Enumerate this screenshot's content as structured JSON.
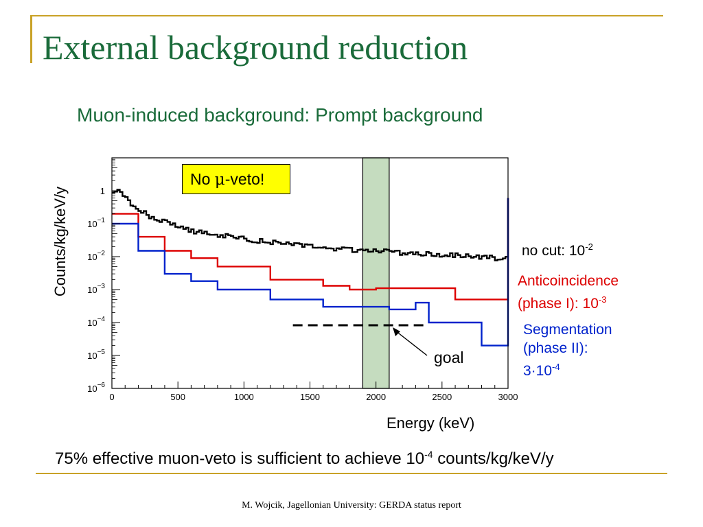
{
  "slide": {
    "title": "External background reduction",
    "subtitle": "Muon-induced background: Prompt background",
    "no_veto_box": {
      "prefix": "No ",
      "symbol": "μ",
      "suffix": "-veto!"
    },
    "annotations": {
      "no_cut": {
        "text": "no cut: 10",
        "exp": "-2"
      },
      "anticoincidence": {
        "line1": "Anticoincidence",
        "line2": "(phase I): 10",
        "exp": "-3"
      },
      "segmentation": {
        "line1": "Segmentation",
        "line2": "(phase II):",
        "line3": "3·10",
        "exp": "-4"
      },
      "goal": "goal"
    },
    "conclusion": {
      "part1": "75% effective muon-veto is sufficient to achieve 10",
      "exp": "-4",
      "part2": " counts/kg/keV/y"
    },
    "footer": "M. Wojcik, Jagellonian University: GERDA status report",
    "colors": {
      "title": "#1a6b3a",
      "frame": "#c9a227",
      "red": "#dd0000",
      "blue": "#0022cc",
      "band": "#c5dcbf",
      "highlight": "#ffff00"
    }
  },
  "chart_data": {
    "type": "line",
    "xlabel": "Energy (keV)",
    "ylabel": "Counts/kg/keV/y",
    "xlim": [
      0,
      3000
    ],
    "ylim": [
      1e-06,
      10
    ],
    "yscale": "log",
    "x_ticks": [
      "0",
      "500",
      "1000",
      "1500",
      "2000",
      "2500",
      "3000"
    ],
    "y_ticks": [
      {
        "base": "1",
        "exp": ""
      },
      {
        "base": "10",
        "exp": "−1"
      },
      {
        "base": "10",
        "exp": "−2"
      },
      {
        "base": "10",
        "exp": "−3"
      },
      {
        "base": "10",
        "exp": "−4"
      },
      {
        "base": "10",
        "exp": "−5"
      },
      {
        "base": "10",
        "exp": "−6"
      }
    ],
    "roi_band": [
      1900,
      2100
    ],
    "goal_level": {
      "y": 0.0001,
      "x_start": 1350,
      "x_end": 2400
    },
    "series": [
      {
        "name": "no cut",
        "color": "#000000",
        "style": "noisy",
        "x": [
          0,
          50,
          100,
          150,
          200,
          250,
          300,
          400,
          500,
          600,
          700,
          800,
          900,
          1000,
          1100,
          1200,
          1300,
          1400,
          1500,
          1600,
          1700,
          1800,
          1900,
          2000,
          2100,
          2200,
          2300,
          2400,
          2500,
          2600,
          2700,
          2800,
          2900,
          3000
        ],
        "y": [
          1,
          0.9,
          0.6,
          0.35,
          0.25,
          0.2,
          0.15,
          0.11,
          0.08,
          0.06,
          0.05,
          0.045,
          0.04,
          0.035,
          0.03,
          0.027,
          0.024,
          0.022,
          0.02,
          0.018,
          0.017,
          0.016,
          0.015,
          0.015,
          0.014,
          0.013,
          0.012,
          0.012,
          0.011,
          0.011,
          0.01,
          0.01,
          0.009,
          0.009
        ]
      },
      {
        "name": "Anticoincidence (phase I)",
        "color": "#dd0000",
        "style": "step",
        "x": [
          0,
          200,
          400,
          600,
          800,
          1200,
          1600,
          1800,
          2000,
          2100,
          2300,
          2400,
          2600,
          2800,
          3000
        ],
        "y": [
          0.2,
          0.04,
          0.015,
          0.009,
          0.005,
          0.002,
          0.0013,
          0.001,
          0.0011,
          0.0011,
          0.0011,
          0.0011,
          0.0005,
          0.0005,
          0.0005
        ]
      },
      {
        "name": "Segmentation (phase II)",
        "color": "#0022cc",
        "style": "step",
        "x": [
          0,
          200,
          400,
          600,
          800,
          1200,
          1600,
          1800,
          2000,
          2100,
          2300,
          2400,
          2600,
          2800,
          3000
        ],
        "y": [
          0.1,
          0.015,
          0.003,
          0.0018,
          0.001,
          0.0005,
          0.0003,
          0.0003,
          0.0003,
          0.00025,
          0.0004,
          0.0001,
          0.0001,
          2e-05,
          2e-05
        ]
      }
    ]
  }
}
